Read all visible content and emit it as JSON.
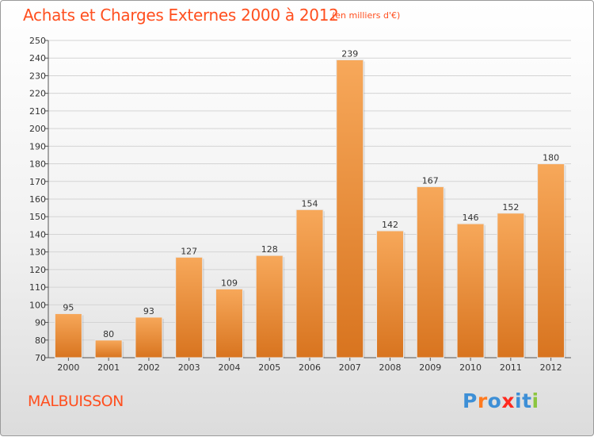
{
  "header": {
    "title": "Achats et Charges Externes 2000 à 2012",
    "subtitle": "(en milliers d'€)"
  },
  "footer": {
    "commune": "MALBUISSON",
    "logo": "Proxiti"
  },
  "colors": {
    "accent": "#ff4f1f",
    "bar_top": "#f7a85a",
    "bar_bottom": "#d8741f",
    "logo_letters": [
      "#3d8fd6",
      "#ff7a1f",
      "#3d8fd6",
      "#ff2a1f",
      "#3d8fd6",
      "#3d8fd6",
      "#8cc63f"
    ]
  },
  "chart_data": {
    "type": "bar",
    "title": "Achats et Charges Externes 2000 à 2012",
    "subtitle": "(en milliers d'€)",
    "categories": [
      "2000",
      "2001",
      "2002",
      "2003",
      "2004",
      "2005",
      "2006",
      "2007",
      "2008",
      "2009",
      "2010",
      "2011",
      "2012"
    ],
    "values": [
      95,
      80,
      93,
      127,
      109,
      128,
      154,
      239,
      142,
      167,
      146,
      152,
      180
    ],
    "ylim": [
      70,
      250
    ],
    "yticks": [
      70,
      80,
      90,
      100,
      110,
      120,
      130,
      140,
      150,
      160,
      170,
      180,
      190,
      200,
      210,
      220,
      230,
      240,
      250
    ],
    "grid": true,
    "data_labels": true
  }
}
